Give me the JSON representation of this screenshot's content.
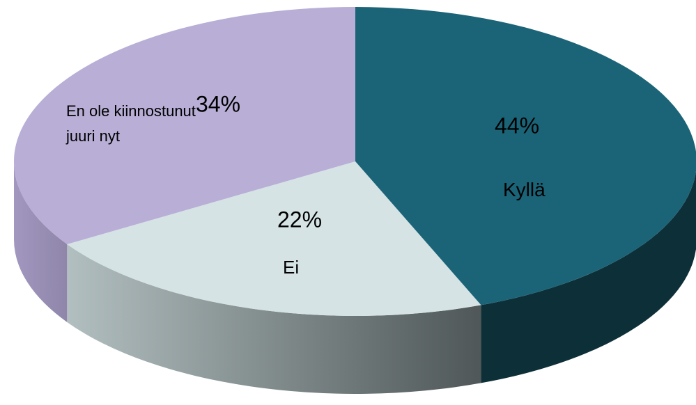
{
  "chart_data": {
    "type": "pie",
    "pie_3d": true,
    "categories": [
      "Kyllä",
      "Ei",
      "En ole kiinnostunut juuri nyt"
    ],
    "values": [
      44,
      22,
      34
    ],
    "value_labels": [
      "44%",
      "22%",
      "34%"
    ],
    "colors": [
      "#1b6478",
      "#d5e3e4",
      "#b8aed6"
    ],
    "side_colors": [
      [
        "#0d2f37",
        "#0d2f37"
      ],
      [
        "#b2bfc0",
        "#4f5758"
      ],
      [
        "#a297bf",
        "#8f86aa"
      ]
    ]
  }
}
